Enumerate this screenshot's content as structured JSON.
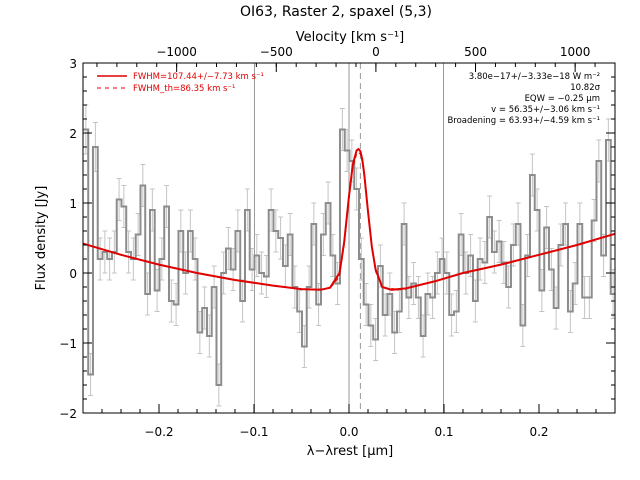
{
  "title": "OI63, Raster 2, spaxel (5,3)",
  "top_axis": {
    "label": "Velocity [km s⁻¹]",
    "ticks": [
      -1000,
      -500,
      0,
      500,
      1000
    ],
    "tick_labels": [
      "−1000",
      "−500",
      "0",
      "500",
      "1000"
    ],
    "minor_step": 100,
    "range": [
      -1470,
      1200
    ]
  },
  "legend": [
    {
      "label": "FWHM=107.44+/−7.73 km s⁻¹",
      "color": "#e00000",
      "style": "solid"
    },
    {
      "label": "FWHM_th=86.35 km s⁻¹",
      "color": "#e00000",
      "style": "dashed"
    }
  ],
  "annotations": [
    "3.80e−17+/−3.33e−18 W m⁻²",
    "10.82σ",
    "EQW = −0.25 μm",
    "v = 56.35+/−3.06 km s⁻¹",
    "Broadening = 63.93+/−4.59 km s⁻¹"
  ],
  "chart_data": {
    "type": "line",
    "xlabel": "λ−λrest [μm]",
    "ylabel": "Flux density [Jy]",
    "xlim": [
      -0.28,
      0.28
    ],
    "ylim": [
      -2,
      3
    ],
    "x_ticks": [
      -0.2,
      -0.1,
      0.0,
      0.1,
      0.2
    ],
    "x_tick_labels": [
      "−0.2",
      "−0.1",
      "0.0",
      "0.1",
      "0.2"
    ],
    "x_minor_step": 0.02,
    "y_ticks": [
      -2,
      -1,
      0,
      1,
      2,
      3
    ],
    "y_tick_labels": [
      "−2",
      "−1",
      "0",
      "1",
      "2",
      "3"
    ],
    "y_minor_step": 0.2,
    "vertical_lines": [
      {
        "x": -0.0995,
        "style": "solid",
        "color": "#999999"
      },
      {
        "x": 0.0,
        "style": "solid",
        "color": "#999999"
      },
      {
        "x": 0.0995,
        "style": "solid",
        "color": "#999999"
      },
      {
        "x": 0.012,
        "style": "dashed",
        "color": "#999999"
      }
    ],
    "series": [
      {
        "style": "steps",
        "color": "#8c8c8c",
        "x": [
          -0.277,
          -0.272,
          -0.267,
          -0.262,
          -0.257,
          -0.252,
          -0.247,
          -0.242,
          -0.237,
          -0.232,
          -0.227,
          -0.222,
          -0.217,
          -0.212,
          -0.207,
          -0.202,
          -0.197,
          -0.192,
          -0.187,
          -0.182,
          -0.177,
          -0.172,
          -0.167,
          -0.162,
          -0.157,
          -0.152,
          -0.147,
          -0.142,
          -0.137,
          -0.132,
          -0.127,
          -0.122,
          -0.117,
          -0.112,
          -0.107,
          -0.102,
          -0.097,
          -0.092,
          -0.087,
          -0.082,
          -0.077,
          -0.072,
          -0.067,
          -0.062,
          -0.057,
          -0.052,
          -0.047,
          -0.042,
          -0.037,
          -0.032,
          -0.027,
          -0.022,
          -0.017,
          -0.012,
          -0.007,
          -0.002,
          0.003,
          0.008,
          0.013,
          0.018,
          0.023,
          0.028,
          0.033,
          0.038,
          0.043,
          0.048,
          0.053,
          0.058,
          0.063,
          0.068,
          0.073,
          0.078,
          0.083,
          0.088,
          0.093,
          0.098,
          0.103,
          0.108,
          0.113,
          0.118,
          0.123,
          0.128,
          0.133,
          0.138,
          0.143,
          0.148,
          0.153,
          0.158,
          0.163,
          0.168,
          0.173,
          0.178,
          0.183,
          0.188,
          0.193,
          0.198,
          0.203,
          0.208,
          0.213,
          0.218,
          0.223,
          0.228,
          0.233,
          0.238,
          0.243,
          0.248,
          0.253,
          0.258,
          0.263,
          0.268,
          0.273,
          0.278
        ],
        "y": [
          2.05,
          -1.45,
          1.8,
          0.2,
          0.3,
          0.2,
          0.3,
          1.05,
          0.95,
          0.3,
          0.2,
          0.55,
          1.25,
          -0.3,
          0.9,
          -0.25,
          0.2,
          0.95,
          -0.4,
          -0.45,
          0.6,
          0.0,
          0.6,
          0.2,
          -0.85,
          -0.5,
          -0.9,
          -0.2,
          -1.6,
          0.0,
          0.35,
          0.05,
          0.6,
          -0.4,
          0.9,
          0.05,
          0.25,
          0.0,
          -0.05,
          0.9,
          0.6,
          0.5,
          0.1,
          0.55,
          -0.2,
          -0.55,
          -1.05,
          -0.2,
          0.7,
          -0.45,
          0.55,
          1.0,
          0.25,
          -0.15,
          2.05,
          1.75,
          1.6,
          1.2,
          0.2,
          -0.45,
          -0.75,
          -0.95,
          0.1,
          -0.6,
          -0.3,
          -0.85,
          -0.55,
          0.7,
          -0.35,
          -0.15,
          -0.35,
          -0.9,
          -0.3,
          -0.35,
          0.0,
          0.2,
          0.0,
          -0.6,
          -0.55,
          0.55,
          0.0,
          0.25,
          -0.4,
          0.2,
          0.15,
          0.8,
          0.3,
          0.45,
          0.15,
          -0.2,
          0.4,
          0.7,
          -0.75,
          0.25,
          1.4,
          0.9,
          -0.25,
          0.65,
          0.05,
          -0.5,
          0.4,
          0.7,
          -0.55,
          -0.15,
          0.7,
          -0.35,
          -0.35,
          0.75,
          1.6,
          0.25,
          1.9,
          -0.3
        ],
        "err": [
          0.35,
          0.3,
          0.35,
          0.3,
          0.3,
          0.3,
          0.3,
          0.3,
          0.3,
          0.3,
          0.3,
          0.3,
          0.3,
          0.3,
          0.3,
          0.3,
          0.3,
          0.3,
          0.3,
          0.3,
          0.3,
          0.3,
          0.3,
          0.3,
          0.3,
          0.3,
          0.3,
          0.3,
          0.3,
          0.3,
          0.3,
          0.3,
          0.3,
          0.3,
          0.3,
          0.3,
          0.3,
          0.3,
          0.3,
          0.3,
          0.3,
          0.3,
          0.3,
          0.3,
          0.3,
          0.3,
          0.3,
          0.3,
          0.3,
          0.3,
          0.3,
          0.3,
          0.3,
          0.3,
          0.3,
          0.3,
          0.3,
          0.3,
          0.3,
          0.3,
          0.3,
          0.3,
          0.3,
          0.3,
          0.3,
          0.3,
          0.3,
          0.3,
          0.3,
          0.3,
          0.3,
          0.3,
          0.3,
          0.3,
          0.3,
          0.3,
          0.3,
          0.3,
          0.3,
          0.3,
          0.3,
          0.3,
          0.3,
          0.3,
          0.3,
          0.3,
          0.3,
          0.3,
          0.3,
          0.3,
          0.3,
          0.3,
          0.3,
          0.3,
          0.3,
          0.3,
          0.3,
          0.3,
          0.3,
          0.3,
          0.3,
          0.3,
          0.3,
          0.3,
          0.3,
          0.3,
          0.3,
          0.3,
          0.3,
          0.3,
          0.3,
          0.35
        ]
      },
      {
        "style": "solid",
        "color": "#e00000",
        "x": [
          -0.28,
          -0.24,
          -0.2,
          -0.16,
          -0.12,
          -0.08,
          -0.05,
          -0.03,
          -0.02,
          -0.01,
          -0.005,
          0.0,
          0.004,
          0.008,
          0.01,
          0.012,
          0.014,
          0.016,
          0.02,
          0.024,
          0.028,
          0.035,
          0.045,
          0.06,
          0.09,
          0.12,
          0.16,
          0.2,
          0.24,
          0.28
        ],
        "y": [
          0.42,
          0.26,
          0.12,
          0.0,
          -0.1,
          -0.18,
          -0.23,
          -0.24,
          -0.21,
          0.0,
          0.45,
          1.1,
          1.55,
          1.75,
          1.77,
          1.74,
          1.62,
          1.42,
          0.88,
          0.38,
          0.05,
          -0.2,
          -0.24,
          -0.22,
          -0.12,
          0.0,
          0.12,
          0.26,
          0.4,
          0.56
        ]
      },
      {
        "style": "dashed",
        "color": "#e00000",
        "x": [
          -0.04,
          -0.02,
          -0.01,
          -0.005,
          0.0,
          0.004,
          0.008,
          0.01,
          0.012,
          0.014,
          0.016,
          0.02,
          0.024,
          0.028,
          0.035,
          0.06
        ],
        "y": [
          -0.24,
          -0.22,
          -0.05,
          0.4,
          1.05,
          1.5,
          1.7,
          1.72,
          1.7,
          1.58,
          1.38,
          0.85,
          0.35,
          0.02,
          -0.21,
          -0.24
        ]
      }
    ]
  }
}
